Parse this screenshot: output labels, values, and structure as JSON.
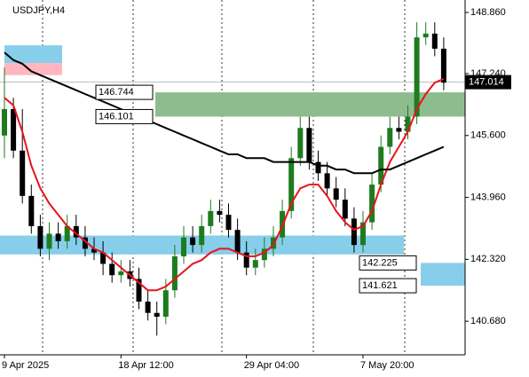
{
  "chart_data": {
    "type": "candlestick",
    "title": "USDJPY,H4",
    "categories": [
      "9 Apr 2025",
      null,
      null,
      null,
      null,
      null,
      null,
      null,
      null,
      null,
      null,
      null,
      null,
      "18 Apr 12:00",
      null,
      null,
      null,
      null,
      null,
      null,
      null,
      null,
      null,
      null,
      null,
      null,
      null,
      "29 Apr 04:00",
      null,
      null,
      null,
      null,
      null,
      null,
      null,
      null,
      null,
      null,
      null,
      null,
      "7 May 20:00",
      null,
      null,
      null,
      null,
      null,
      null,
      null,
      null,
      null
    ],
    "open": [
      145.6,
      146.3,
      145.2,
      144.0,
      143.2,
      142.6,
      143.0,
      142.8,
      143.2,
      142.9,
      142.6,
      142.5,
      142.2,
      141.9,
      142.0,
      141.8,
      141.2,
      140.9,
      140.8,
      141.5,
      142.4,
      142.9,
      142.7,
      143.2,
      143.6,
      143.5,
      143.1,
      142.5,
      142.1,
      142.3,
      142.6,
      142.9,
      143.6,
      145.0,
      145.8,
      144.9,
      144.6,
      144.2,
      143.9,
      143.4,
      142.7,
      143.3,
      144.3,
      145.3,
      145.8,
      145.7,
      146.1,
      148.2,
      148.3,
      147.9
    ],
    "high": [
      147.4,
      146.6,
      146.3,
      144.3,
      143.5,
      143.3,
      143.3,
      143.5,
      143.5,
      143.2,
      142.9,
      142.8,
      142.5,
      142.3,
      142.3,
      142.1,
      141.5,
      141.2,
      141.8,
      142.7,
      143.2,
      143.2,
      143.5,
      143.9,
      143.9,
      143.8,
      143.4,
      142.8,
      142.6,
      142.9,
      143.2,
      143.9,
      145.3,
      146.1,
      146.1,
      145.2,
      144.9,
      144.5,
      144.2,
      143.7,
      143.6,
      144.6,
      145.6,
      146.1,
      146.1,
      146.4,
      148.6,
      148.6,
      148.6,
      148.2
    ],
    "low": [
      145.0,
      145.0,
      143.8,
      143.0,
      142.4,
      142.3,
      142.6,
      142.6,
      142.7,
      142.4,
      142.3,
      141.9,
      141.7,
      141.7,
      141.6,
      141.0,
      140.7,
      140.3,
      140.6,
      141.3,
      142.2,
      142.5,
      142.5,
      143.0,
      143.3,
      142.9,
      142.3,
      141.9,
      141.9,
      142.1,
      142.4,
      142.7,
      143.4,
      144.8,
      144.7,
      144.4,
      144.0,
      143.7,
      143.2,
      142.5,
      142.5,
      143.1,
      144.1,
      145.1,
      145.5,
      145.5,
      145.9,
      148.0,
      147.7,
      146.8
    ],
    "close": [
      146.3,
      145.2,
      144.0,
      143.2,
      142.6,
      143.0,
      142.8,
      143.2,
      142.9,
      142.6,
      142.5,
      142.2,
      141.9,
      142.0,
      141.8,
      141.2,
      140.9,
      140.8,
      141.5,
      142.4,
      142.9,
      142.7,
      143.2,
      143.6,
      143.5,
      143.1,
      142.5,
      142.1,
      142.3,
      142.6,
      142.9,
      143.6,
      145.0,
      145.8,
      144.9,
      144.6,
      144.2,
      143.9,
      143.4,
      142.7,
      143.3,
      144.3,
      145.3,
      145.8,
      145.7,
      146.1,
      148.2,
      148.3,
      147.9,
      147.0
    ],
    "up_color": "#1e7b1e",
    "down_color": "#000000",
    "series": [
      {
        "color": "#e8141b",
        "values": [
          146.6,
          146.4,
          145.7,
          144.8,
          144.2,
          143.8,
          143.5,
          143.2,
          143.0,
          142.8,
          142.6,
          142.5,
          142.3,
          142.1,
          141.9,
          141.7,
          141.5,
          141.5,
          141.6,
          141.8,
          142.0,
          142.2,
          142.3,
          142.5,
          142.6,
          142.6,
          142.5,
          142.4,
          142.4,
          142.5,
          142.7,
          143.2,
          143.8,
          144.2,
          144.3,
          144.3,
          144.0,
          143.6,
          143.3,
          143.1,
          143.2,
          143.6,
          144.3,
          144.9,
          145.3,
          145.7,
          146.3,
          146.7,
          147.0,
          147.1
        ]
      },
      {
        "color": "#000000",
        "values": [
          147.8,
          147.6,
          147.5,
          147.3,
          147.2,
          147.1,
          147.0,
          146.9,
          146.8,
          146.7,
          146.6,
          146.5,
          146.4,
          146.3,
          146.2,
          146.1,
          146.0,
          145.9,
          145.8,
          145.7,
          145.6,
          145.5,
          145.4,
          145.3,
          145.2,
          145.1,
          145.1,
          145.0,
          145.0,
          145.0,
          144.9,
          144.9,
          144.9,
          144.9,
          144.9,
          144.8,
          144.8,
          144.7,
          144.7,
          144.6,
          144.6,
          144.6,
          144.7,
          144.7,
          144.8,
          144.9,
          145.0,
          145.1,
          145.2,
          145.3
        ]
      }
    ],
    "zones": [
      {
        "low": {
          "value": 146.101,
          "label": "146.101"
        },
        "high": {
          "value": 146.744,
          "label": "146.744"
        },
        "color": "#8fbc8f"
      },
      {
        "low": {
          "value": 141.621,
          "label": "141.621"
        },
        "high": {
          "value": 142.225,
          "label": "142.225"
        },
        "color": "#87ceeb"
      },
      {
        "low": 142.45,
        "high": 142.95,
        "color": "#87ceeb"
      },
      {
        "low": 147.52,
        "high": 147.99,
        "color": "#87ceeb"
      },
      {
        "low": 147.2,
        "high": 147.52,
        "color": "#ffb6c1"
      }
    ],
    "current_price": {
      "value": 147.014,
      "label": "147.014"
    },
    "ylim": [
      139.79,
      149.19
    ],
    "yticks": [
      {
        "value": 148.86,
        "label": "148.860"
      },
      {
        "value": 147.24,
        "label": "147.240"
      },
      {
        "value": 145.6,
        "label": "145.600"
      },
      {
        "value": 143.96,
        "label": "143.960"
      },
      {
        "value": 142.32,
        "label": "142.320"
      },
      {
        "value": 140.68,
        "label": "140.680"
      }
    ]
  }
}
